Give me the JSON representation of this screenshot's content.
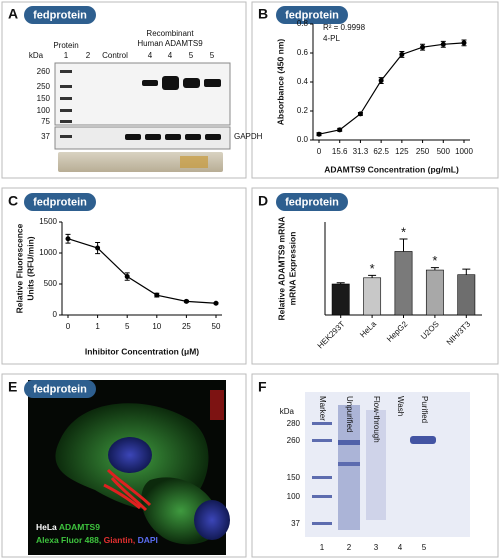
{
  "badge": "fedprotein",
  "panel_a": {
    "letter": "A",
    "kda": "kDa",
    "protein": "Protein",
    "lanes": [
      "1",
      "2",
      "Control",
      "4",
      "4",
      "5",
      "5"
    ],
    "recombinant": [
      "Recombinant",
      "Human ADAMTS9"
    ],
    "markers": [
      "260",
      "250",
      "150",
      "100",
      "75",
      "37"
    ],
    "gapdh": "GAPDH"
  },
  "chart_data": [
    {
      "type": "line",
      "letter": "B",
      "categories": [
        "0",
        "15.6",
        "31.3",
        "62.5",
        "125",
        "250",
        "500",
        "1000"
      ],
      "values": [
        0.04,
        0.07,
        0.18,
        0.41,
        0.59,
        0.64,
        0.66,
        0.67
      ],
      "errors": [
        0.01,
        0.01,
        0.01,
        0.02,
        0.02,
        0.02,
        0.02,
        0.02
      ],
      "color": "#000000",
      "ylim": [
        0,
        0.8
      ],
      "yticks": [
        {
          "value": 0,
          "label": "0.0"
        },
        {
          "value": 0.2,
          "label": "0.2"
        },
        {
          "value": 0.4,
          "label": "0.4"
        },
        {
          "value": 0.6,
          "label": "0.6"
        },
        {
          "value": 0.8,
          "label": "0.8"
        }
      ],
      "ylabel": [
        "Absorbance (450 nm)"
      ],
      "xlabel": "ADAMTS9 Concentration (pg/mL)",
      "annotations": [
        "R² = 0.9998",
        "4-PL"
      ]
    },
    {
      "type": "line",
      "letter": "C",
      "categories": [
        "0",
        "1",
        "5",
        "10",
        "25",
        "50"
      ],
      "values": [
        1230,
        1080,
        620,
        320,
        220,
        190
      ],
      "errors": [
        70,
        90,
        60,
        30,
        15,
        10
      ],
      "color": "#000000",
      "ylim": [
        0,
        1500
      ],
      "yticks": [
        0,
        500,
        1000,
        1500
      ],
      "ylabel": [
        "Relative Fluorescence",
        "Units (RFU/min)"
      ],
      "xlabel": "Inhibitor Concentration (μM)"
    },
    {
      "type": "bar",
      "letter": "D",
      "categories": [
        "HEK293T",
        "HeLa",
        "HepG2",
        "U2OS",
        "NIH/3T3"
      ],
      "values": [
        1.0,
        1.2,
        2.05,
        1.45,
        1.3
      ],
      "errors": [
        0.04,
        0.08,
        0.4,
        0.08,
        0.18
      ],
      "colors": [
        "#1a1a1a",
        "#c8c8c8",
        "#7a7a7a",
        "#a8a8a8",
        "#6e6e6e"
      ],
      "significance": [
        null,
        "*",
        "*",
        "*",
        null
      ],
      "ylim": [
        0,
        3
      ],
      "ylabel": [
        "Relative ADAMTS9 mRNA",
        "mRNA Expression"
      ]
    }
  ],
  "panel_e": {
    "letter": "E",
    "cell_line": "HeLa",
    "target": "ADAMTS9",
    "stains": [
      "Alexa Fluor 488,",
      "Giantin,",
      "DAPI"
    ]
  },
  "panel_f": {
    "letter": "F",
    "kda": "kDa",
    "markers": [
      "280",
      "260",
      "150",
      "100",
      "37"
    ],
    "lanes": [
      "Marker",
      "Unpurified",
      "Flow-through",
      "Wash",
      "Purified"
    ],
    "lane_numbers": [
      "1",
      "2",
      "3",
      "4",
      "5"
    ]
  }
}
